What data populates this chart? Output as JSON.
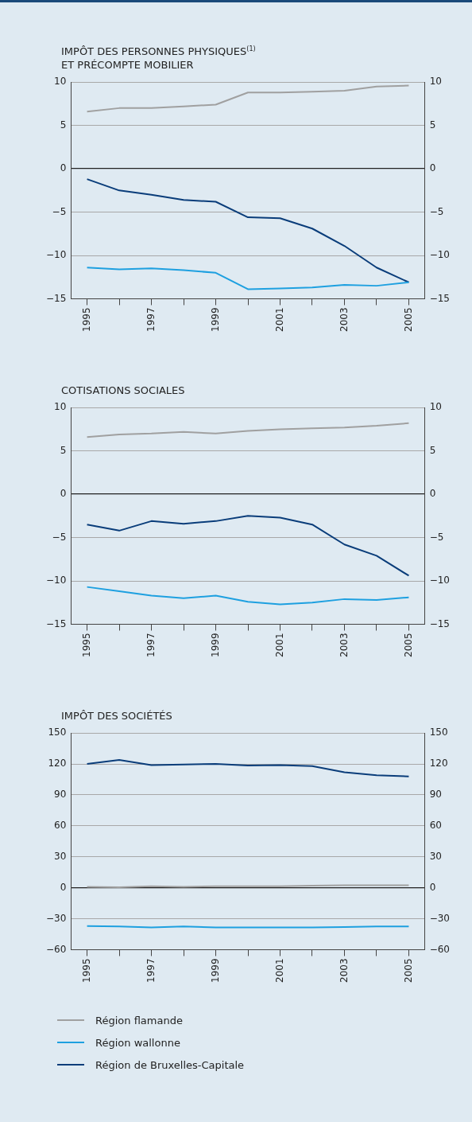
{
  "chart_data": [
    {
      "type": "line",
      "title": "IMPÔT DES PERSONNES PHYSIQUES$^{(1)}$\nET PRÉCOMPTE MOBILIER",
      "categories": [
        "1995",
        null,
        "1997",
        null,
        "1999",
        null,
        "2001",
        null,
        "2003",
        null,
        "2005"
      ],
      "series": [
        {
          "color": "#a0a0a0",
          "values": [
            6.6,
            7.0,
            7.0,
            7.2,
            7.4,
            8.8,
            8.8,
            8.9,
            9.0,
            9.5,
            9.6
          ]
        },
        {
          "color": "#1ea0e0",
          "values": [
            -11.4,
            -11.6,
            -11.5,
            -11.7,
            -12.0,
            -13.9,
            -13.8,
            -13.7,
            -13.4,
            -13.5,
            -13.1
          ]
        },
        {
          "color": "#0a3d7a",
          "values": [
            -1.2,
            -2.5,
            -3.0,
            -3.6,
            -3.8,
            -5.6,
            -5.7,
            -6.9,
            -8.9,
            -11.4,
            -13.1
          ]
        }
      ],
      "ylim": [
        -15,
        10
      ],
      "yticks": [
        -15,
        -10,
        -5,
        0,
        5,
        10
      ],
      "y2lim": [
        -15,
        10
      ],
      "y2ticks": [
        -15,
        -10,
        -5,
        0,
        5,
        10
      ],
      "grid": "y",
      "legend": false,
      "marker": "none"
    },
    {
      "type": "line",
      "title": "COTISATIONS SOCIALES",
      "categories": [
        "1995",
        null,
        "1997",
        null,
        "1999",
        null,
        "2001",
        null,
        "2003",
        null,
        "2005"
      ],
      "series": [
        {
          "color": "#a0a0a0",
          "values": [
            6.6,
            6.9,
            7.0,
            7.2,
            7.0,
            7.3,
            7.5,
            7.6,
            7.7,
            7.9,
            8.2
          ]
        },
        {
          "color": "#1ea0e0",
          "values": [
            -10.7,
            -11.2,
            -11.7,
            -12.0,
            -11.7,
            -12.4,
            -12.7,
            -12.5,
            -12.1,
            -12.2,
            -11.9
          ]
        },
        {
          "color": "#0a3d7a",
          "values": [
            -3.5,
            -4.2,
            -3.1,
            -3.4,
            -3.1,
            -2.5,
            -2.7,
            -3.5,
            -5.8,
            -7.1,
            -9.4
          ]
        }
      ],
      "ylim": [
        -15,
        10
      ],
      "yticks": [
        -15,
        -10,
        -5,
        0,
        5,
        10
      ],
      "y2lim": [
        -15,
        10
      ],
      "y2ticks": [
        -15,
        -10,
        -5,
        0,
        5,
        10
      ],
      "grid": "y",
      "legend": false,
      "marker": "none"
    },
    {
      "type": "line",
      "title": "IMPÔT DES SOCIÉTÉS",
      "categories": [
        "1995",
        null,
        "1997",
        null,
        "1999",
        null,
        "2001",
        null,
        "2003",
        null,
        "2005"
      ],
      "series": [
        {
          "name": "Région flamande",
          "color": "#a0a0a0",
          "values": [
            1,
            0.5,
            1.5,
            1,
            1.5,
            1.5,
            1.5,
            2,
            2.5,
            2.5,
            2.5
          ]
        },
        {
          "name": "Région wallonne",
          "color": "#1ea0e0",
          "values": [
            -37,
            -37.5,
            -38.5,
            -37.5,
            -38.5,
            -38.5,
            -38.5,
            -38.5,
            -38,
            -37.5,
            -37.5
          ]
        },
        {
          "name": "Région de Bruxelles-Capitale",
          "color": "#0a3d7a",
          "values": [
            120,
            124,
            119,
            119.5,
            120,
            118.5,
            119,
            118,
            112,
            109,
            108
          ]
        }
      ],
      "ylim": [
        -60,
        150
      ],
      "yticks": [
        -60,
        -30,
        0,
        30,
        60,
        90,
        120,
        150
      ],
      "y2lim": [
        -60,
        150
      ],
      "y2ticks": [
        -60,
        -30,
        0,
        30,
        60,
        90,
        120,
        150
      ],
      "grid": "y",
      "legend": "bottom",
      "marker": "none"
    }
  ]
}
